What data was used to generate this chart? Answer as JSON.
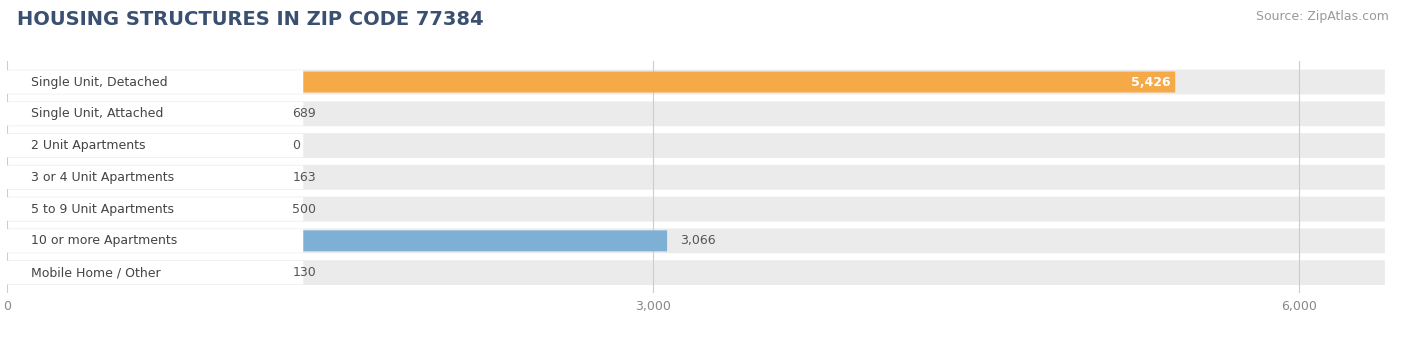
{
  "title": "HOUSING STRUCTURES IN ZIP CODE 77384",
  "source": "Source: ZipAtlas.com",
  "categories": [
    "Single Unit, Detached",
    "Single Unit, Attached",
    "2 Unit Apartments",
    "3 or 4 Unit Apartments",
    "5 to 9 Unit Apartments",
    "10 or more Apartments",
    "Mobile Home / Other"
  ],
  "values": [
    5426,
    689,
    0,
    163,
    500,
    3066,
    130
  ],
  "bar_colors": [
    "#F5A947",
    "#E8938C",
    "#A8BFE0",
    "#A8BFE0",
    "#A8BFE0",
    "#7EB0D5",
    "#C8A8D0"
  ],
  "value_inside_bar": [
    true,
    false,
    false,
    false,
    false,
    false,
    false
  ],
  "bar_bg_color": "#EBEBEB",
  "bar_height": 0.7,
  "xlim": [
    0,
    6400
  ],
  "xticks": [
    0,
    3000,
    6000
  ],
  "xticklabels": [
    "0",
    "3,000",
    "6,000"
  ],
  "title_fontsize": 14,
  "source_fontsize": 9,
  "label_fontsize": 9,
  "value_fontsize": 9,
  "background_color": "#FFFFFF"
}
